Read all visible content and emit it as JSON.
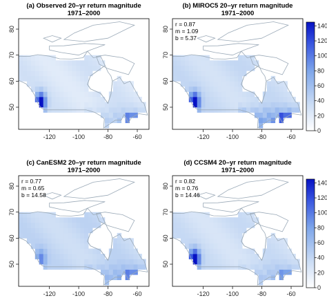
{
  "figure": {
    "panels": [
      {
        "id": "a",
        "title": "(a) Observed 20–yr return magnitude",
        "period": "1971–2000",
        "stats": [],
        "colorbar": false,
        "x_ticks": [
          "-120",
          "-100",
          "-80",
          "-60"
        ],
        "y_ticks": [
          "80",
          "70",
          "60",
          "50"
        ]
      },
      {
        "id": "b",
        "title": "(b) MIROC5 20–yr return magnitude",
        "period": "1971–2000",
        "stats": [
          "r = 0.87",
          "m = 1.09",
          "b = 5.37"
        ],
        "colorbar": true,
        "x_ticks": [
          "-120",
          "-100",
          "-80",
          "-60"
        ],
        "y_ticks": [
          "80",
          "70",
          "60",
          "50"
        ]
      },
      {
        "id": "c",
        "title": "(c) CanESM2 20–yr return magnitude",
        "period": "1971–2000",
        "stats": [
          "r = 0.77",
          "m = 0.65",
          "b = 14.58"
        ],
        "colorbar": false,
        "x_ticks": [
          "-120",
          "-100",
          "-80",
          "-60"
        ],
        "y_ticks": [
          "80",
          "70",
          "60",
          "50"
        ]
      },
      {
        "id": "d",
        "title": "(d) CCSM4 20–yr return magnitude",
        "period": "1971–2000",
        "stats": [
          "r = 0.82",
          "m = 0.76",
          "b = 14.46"
        ],
        "colorbar": true,
        "x_ticks": [
          "-120",
          "-100",
          "-80",
          "-60"
        ],
        "y_ticks": [
          "80",
          "70",
          "60",
          "50"
        ]
      }
    ],
    "colorbar_ticks": [
      "140",
      "120",
      "100",
      "80",
      "60",
      "40",
      "20",
      "0"
    ],
    "colorbar_range": [
      0,
      145
    ],
    "map_extent": {
      "lon": [
        -141,
        -52
      ],
      "lat": [
        41.5,
        84
      ]
    },
    "palette": {
      "low": "#ffffff",
      "mid": "#9fc0ea",
      "high": "#0b19d6",
      "coast": "#9aa9b7",
      "frame": "#000000"
    }
  }
}
